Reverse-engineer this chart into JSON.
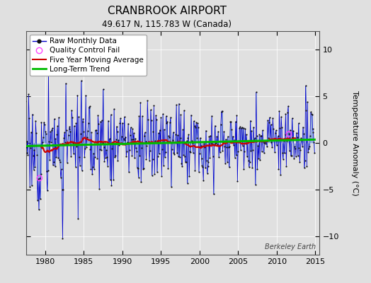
{
  "title": "CRANBROOK AIRPORT",
  "subtitle": "49.617 N, 115.783 W (Canada)",
  "ylabel": "Temperature Anomaly (°C)",
  "watermark": "Berkeley Earth",
  "xlim": [
    1977.5,
    2015.5
  ],
  "ylim": [
    -12,
    12
  ],
  "yticks": [
    -10,
    -5,
    0,
    5,
    10
  ],
  "xticks": [
    1980,
    1985,
    1990,
    1995,
    2000,
    2005,
    2010,
    2015
  ],
  "start_year": 1977,
  "num_months": 456,
  "random_seed": 17,
  "bar_color": "#7799dd",
  "bar_alpha": 0.75,
  "line_color": "#0000cc",
  "dot_color": "#111111",
  "ma_color": "#cc0000",
  "trend_color": "#00bb00",
  "qc_color": "#ff44ff",
  "bg_color": "#e0e0e0",
  "legend_fontsize": 7.5,
  "title_fontsize": 11,
  "subtitle_fontsize": 8.5
}
